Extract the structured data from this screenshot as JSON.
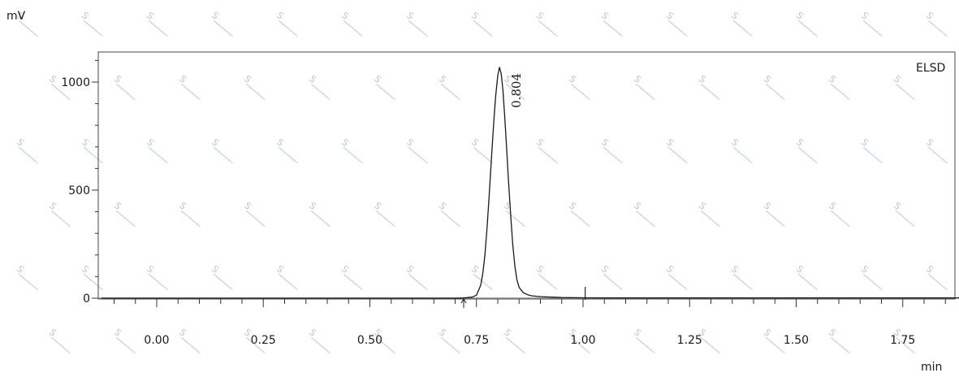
{
  "chart_data": {
    "type": "line",
    "y_unit": "mV",
    "x_unit": "min",
    "detector": "ELSD",
    "xlim": [
      -0.13,
      1.9
    ],
    "ylim": [
      -10,
      1130
    ],
    "x_ticks": [
      {
        "value": 0.0,
        "label": "0.00"
      },
      {
        "value": 0.25,
        "label": "0.25"
      },
      {
        "value": 0.5,
        "label": "0.50"
      },
      {
        "value": 0.75,
        "label": "0.75"
      },
      {
        "value": 1.0,
        "label": "1.00"
      },
      {
        "value": 1.25,
        "label": "1.25"
      },
      {
        "value": 1.5,
        "label": "1.50"
      },
      {
        "value": 1.75,
        "label": "1.75"
      }
    ],
    "y_ticks": [
      {
        "value": 0,
        "label": "0"
      },
      {
        "value": 500,
        "label": "500"
      },
      {
        "value": 1000,
        "label": "1000"
      }
    ],
    "series": [
      {
        "color": "#1a1a1a",
        "x": [
          -0.13,
          0.7,
          0.72,
          0.74,
          0.75,
          0.76,
          0.765,
          0.77,
          0.775,
          0.78,
          0.785,
          0.79,
          0.795,
          0.8,
          0.804,
          0.808,
          0.812,
          0.816,
          0.82,
          0.825,
          0.83,
          0.835,
          0.84,
          0.845,
          0.85,
          0.86,
          0.87,
          0.88,
          0.9,
          0.95,
          1.0,
          1.05,
          1.5,
          1.9
        ],
        "y": [
          0,
          0,
          1,
          5,
          14,
          60,
          115,
          205,
          330,
          480,
          640,
          800,
          935,
          1030,
          1068,
          1040,
          965,
          850,
          720,
          550,
          390,
          250,
          150,
          85,
          50,
          25,
          16,
          11,
          7,
          3,
          2,
          1,
          1,
          1
        ]
      }
    ],
    "peaks": [
      {
        "retention_time": 0.804,
        "label": "0.804",
        "height": 1068
      }
    ],
    "integration_markers": [
      {
        "x": 0.72,
        "symbol": "↑"
      },
      {
        "x": 1.005,
        "symbol": "|"
      }
    ],
    "grid": false,
    "watermark_text": "S"
  }
}
